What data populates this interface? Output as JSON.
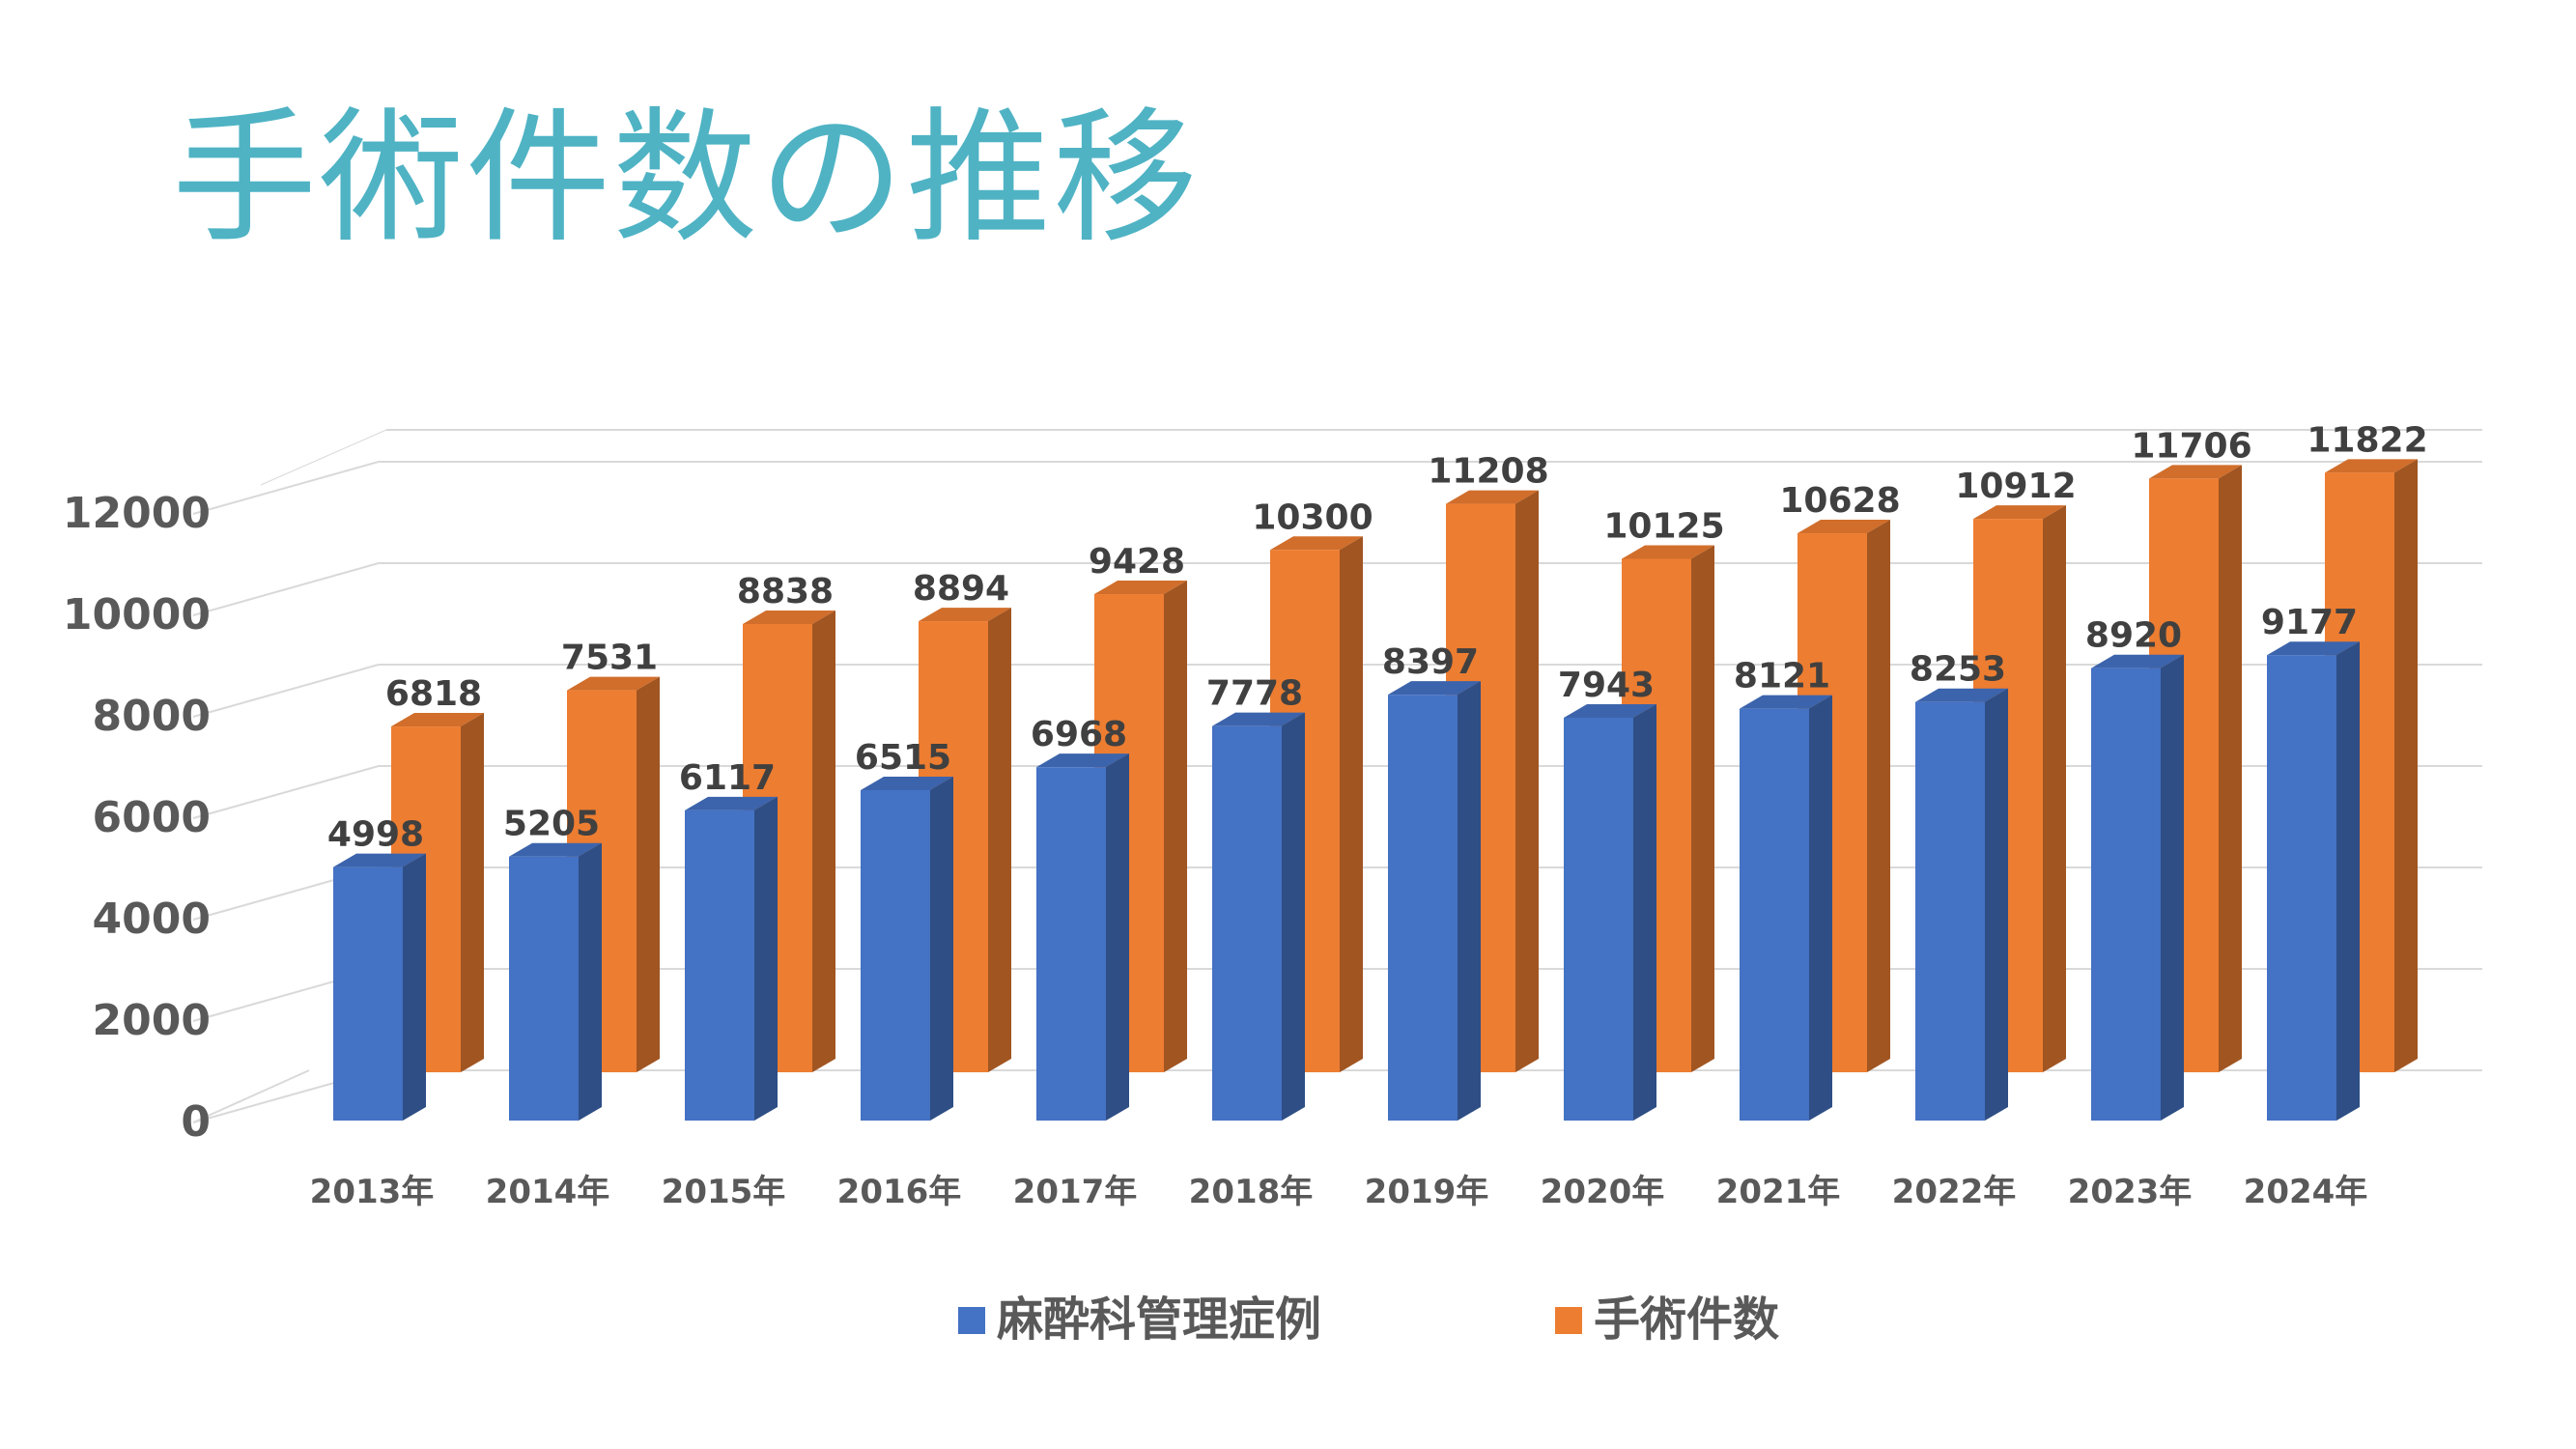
{
  "page": {
    "title": "手術件数の推移"
  },
  "chart_data": {
    "type": "bar",
    "title": "",
    "xlabel": "",
    "ylabel": "",
    "categories": [
      "2013年",
      "2014年",
      "2015年",
      "2016年",
      "2017年",
      "2018年",
      "2019年",
      "2020年",
      "2021年",
      "2022年",
      "2023年",
      "2024年"
    ],
    "y_ticks": [
      "0",
      "2000",
      "4000",
      "6000",
      "8000",
      "10000",
      "12000"
    ],
    "ylim": [
      0,
      12000
    ],
    "grid": true,
    "legend_position": "bottom",
    "series": [
      {
        "name": "麻酔科管理症例",
        "color": "#4472C4",
        "values": [
          4998,
          5205,
          6117,
          6515,
          6968,
          7778,
          8397,
          7943,
          8121,
          8253,
          8920,
          9177
        ],
        "labels": [
          "4998",
          "5205",
          "6117",
          "6515",
          "6968",
          "7778",
          "8397",
          "7943",
          "8121",
          "8253",
          "8920",
          "9177"
        ]
      },
      {
        "name": "手術件数",
        "color": "#ED7D31",
        "values": [
          6818,
          7531,
          8838,
          8894,
          9428,
          10300,
          11208,
          10125,
          10628,
          10912,
          11706,
          11822
        ],
        "labels": [
          "6818",
          "7531",
          "8838",
          "8894",
          "9428",
          "10300",
          "11208",
          "10125",
          "10628",
          "10912",
          "11706",
          "11822"
        ]
      }
    ]
  },
  "colors": {
    "title": "#4FB3C4",
    "grid": "#D9D9D9",
    "text": "#595959"
  }
}
